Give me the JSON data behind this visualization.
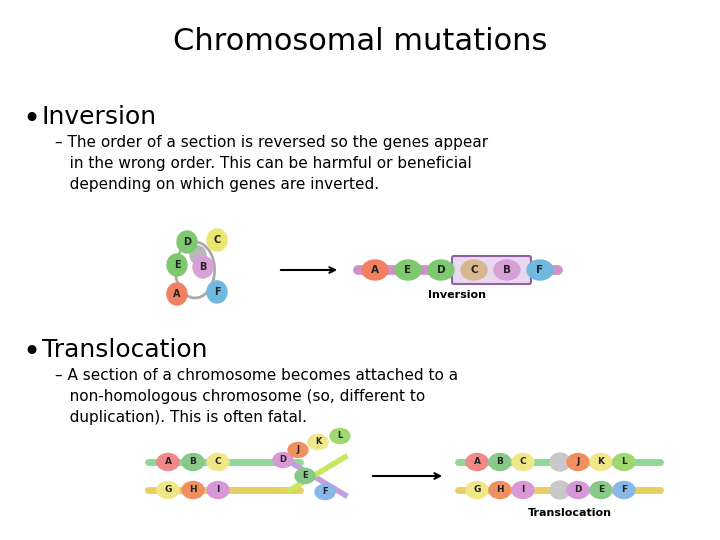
{
  "title": "Chromosomal mutations",
  "title_fontsize": 22,
  "background_color": "#ffffff",
  "bullet1_header": "Inversion",
  "bullet1_header_fontsize": 18,
  "bullet1_text": "– The order of a section is reversed so the genes appear\n   in the wrong order. This can be harmful or beneficial\n   depending on which genes are inverted.",
  "bullet1_text_fontsize": 11,
  "bullet2_header": "Translocation",
  "bullet2_header_fontsize": 18,
  "bullet2_text": "– A section of a chromosome becomes attached to a\n   non-homologous chromosome (so, different to\n   duplication). This is often fatal.",
  "bullet2_text_fontsize": 11,
  "text_color": "#000000",
  "inversion_label": "Inversion",
  "translocation_label": "Translocation"
}
